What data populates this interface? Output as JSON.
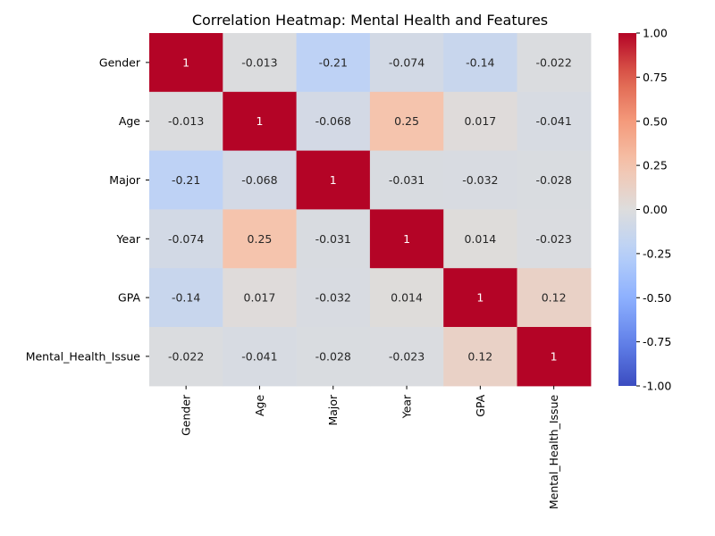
{
  "chart_data": {
    "type": "heatmap",
    "title": "Correlation Heatmap: Mental Health and Features",
    "xlabel": "",
    "ylabel": "",
    "variables": [
      "Gender",
      "Age",
      "Major",
      "Year",
      "GPA",
      "Mental_Health_Issue"
    ],
    "matrix": [
      [
        1,
        -0.013,
        -0.21,
        -0.074,
        -0.14,
        -0.022
      ],
      [
        -0.013,
        1,
        -0.068,
        0.25,
        0.017,
        -0.041
      ],
      [
        -0.21,
        -0.068,
        1,
        -0.031,
        -0.032,
        -0.028
      ],
      [
        -0.074,
        0.25,
        -0.031,
        1,
        0.014,
        -0.023
      ],
      [
        -0.14,
        0.017,
        -0.032,
        0.014,
        1,
        0.12
      ],
      [
        -0.022,
        -0.041,
        -0.028,
        -0.023,
        0.12,
        1
      ]
    ],
    "annotations": [
      [
        "1",
        "-0.013",
        "-0.21",
        "-0.074",
        "-0.14",
        "-0.022"
      ],
      [
        "-0.013",
        "1",
        "-0.068",
        "0.25",
        "0.017",
        "-0.041"
      ],
      [
        "-0.21",
        "-0.068",
        "1",
        "-0.031",
        "-0.032",
        "-0.028"
      ],
      [
        "-0.074",
        "0.25",
        "-0.031",
        "1",
        "0.014",
        "-0.023"
      ],
      [
        "-0.14",
        "0.017",
        "-0.032",
        "0.014",
        "1",
        "0.12"
      ],
      [
        "-0.022",
        "-0.041",
        "-0.028",
        "-0.023",
        "0.12",
        "1"
      ]
    ],
    "colormap": "coolwarm",
    "vmin": -1,
    "vmax": 1,
    "colorbar_ticks": [
      "-1.00",
      "-0.75",
      "-0.50",
      "-0.25",
      "0.00",
      "0.25",
      "0.50",
      "0.75",
      "1.00"
    ],
    "colorbar_tick_values": [
      -1,
      -0.75,
      -0.5,
      -0.25,
      0,
      0.25,
      0.5,
      0.75,
      1
    ]
  }
}
